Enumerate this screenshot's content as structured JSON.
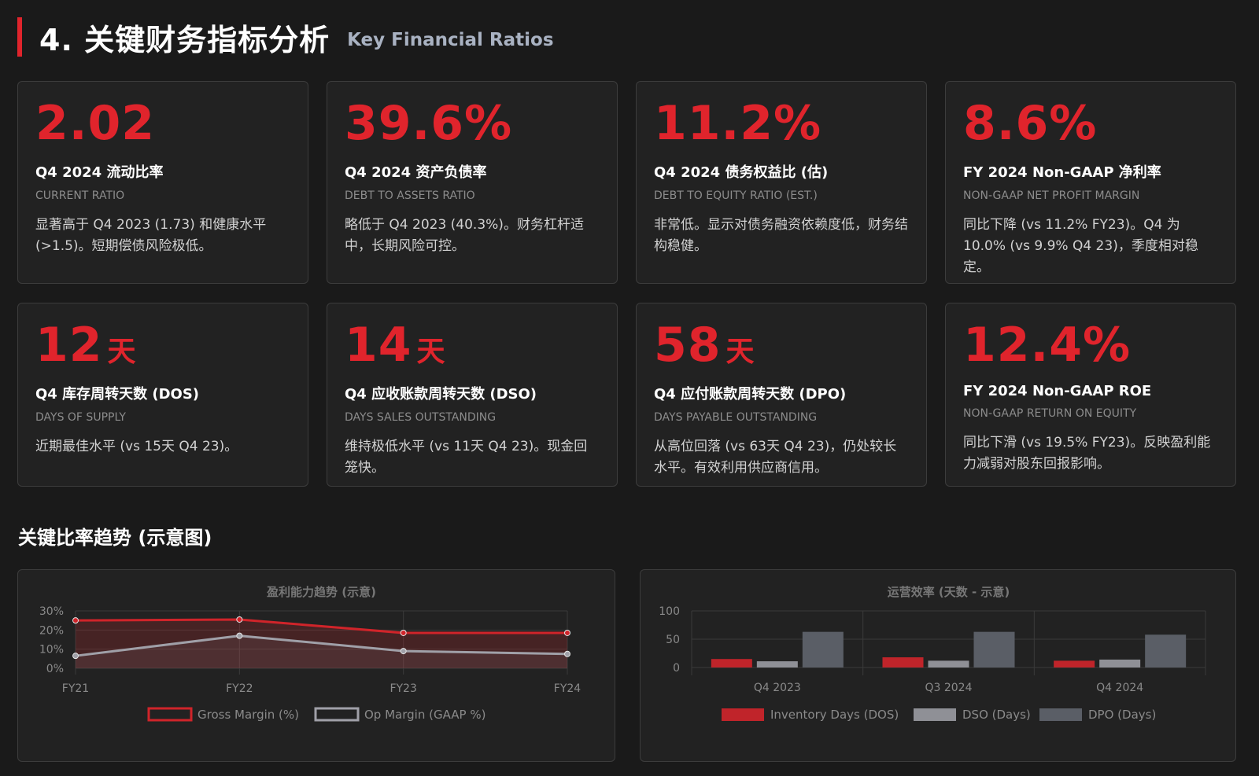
{
  "header": {
    "title": "4. 关键财务指标分析",
    "subtitle": "Key Financial Ratios"
  },
  "colors": {
    "accent": "#e0242c",
    "background": "#1a1a1a",
    "card": "#222222",
    "series_red": "#d0242a",
    "series_light": "#a0a0a8",
    "series_dark": "#5a5e66"
  },
  "cards": [
    {
      "value": "2.02",
      "unit": "",
      "label": "Q4 2024 流动比率",
      "en": "CURRENT RATIO",
      "desc": "显著高于 Q4 2023 (1.73) 和健康水平 (>1.5)。短期偿债风险极低。"
    },
    {
      "value": "39.6%",
      "unit": "",
      "label": "Q4 2024 资产负债率",
      "en": "DEBT TO ASSETS RATIO",
      "desc": "略低于 Q4 2023 (40.3%)。财务杠杆适中，长期风险可控。"
    },
    {
      "value": "11.2%",
      "unit": "",
      "label": "Q4 2024 债务权益比 (估)",
      "en": "DEBT TO EQUITY RATIO (EST.)",
      "desc": "非常低。显示对债务融资依赖度低，财务结构稳健。"
    },
    {
      "value": "8.6%",
      "unit": "",
      "label": "FY 2024 Non-GAAP 净利率",
      "en": "NON-GAAP NET PROFIT MARGIN",
      "desc": "同比下降 (vs 11.2% FY23)。Q4 为 10.0% (vs 9.9% Q4 23)，季度相对稳定。"
    },
    {
      "value": "12",
      "unit": "天",
      "label": "Q4 库存周转天数 (DOS)",
      "en": "DAYS OF SUPPLY",
      "desc": "近期最佳水平 (vs 15天 Q4 23)。"
    },
    {
      "value": "14",
      "unit": "天",
      "label": "Q4 应收账款周转天数 (DSO)",
      "en": "DAYS SALES OUTSTANDING",
      "desc": "维持极低水平 (vs 11天 Q4 23)。现金回笼快。"
    },
    {
      "value": "58",
      "unit": "天",
      "label": "Q4 应付账款周转天数 (DPO)",
      "en": "DAYS PAYABLE OUTSTANDING",
      "desc": "从高位回落 (vs 63天 Q4 23)，仍处较长水平。有效利用供应商信用。"
    },
    {
      "value": "12.4%",
      "unit": "",
      "label": "FY 2024 Non-GAAP ROE",
      "en": "NON-GAAP RETURN ON EQUITY",
      "desc": "同比下滑 (vs 19.5% FY23)。反映盈利能力减弱对股东回报影响。"
    }
  ],
  "section_title": "关键比率趋势 (示意图)",
  "chart_data": [
    {
      "type": "line",
      "title": "盈利能力趋势 (示意)",
      "categories": [
        "FY21",
        "FY22",
        "FY23",
        "FY24"
      ],
      "ylim": [
        0,
        30
      ],
      "yticks": [
        "0%",
        "10%",
        "20%",
        "30%"
      ],
      "grid": true,
      "legend": "bottom",
      "series": [
        {
          "name": "Gross Margin (%)",
          "values": [
            25.0,
            25.5,
            18.5,
            18.5
          ],
          "color": "#d0242a"
        },
        {
          "name": "Op Margin (GAAP %)",
          "values": [
            6.5,
            17.0,
            9.0,
            7.5
          ],
          "color": "#a0a0a8"
        }
      ]
    },
    {
      "type": "bar",
      "title": "运营效率 (天数 - 示意)",
      "categories": [
        "Q4 2023",
        "Q3 2024",
        "Q4 2024"
      ],
      "ylim": [
        0,
        100
      ],
      "yticks": [
        "0",
        "50",
        "100"
      ],
      "grid": true,
      "legend": "bottom",
      "series": [
        {
          "name": "Inventory Days (DOS)",
          "values": [
            15,
            18,
            12
          ],
          "color": "#c0242a"
        },
        {
          "name": "DSO (Days)",
          "values": [
            11,
            12,
            14
          ],
          "color": "#8f9096"
        },
        {
          "name": "DPO (Days)",
          "values": [
            63,
            63,
            58
          ],
          "color": "#5a5e66"
        }
      ]
    }
  ]
}
